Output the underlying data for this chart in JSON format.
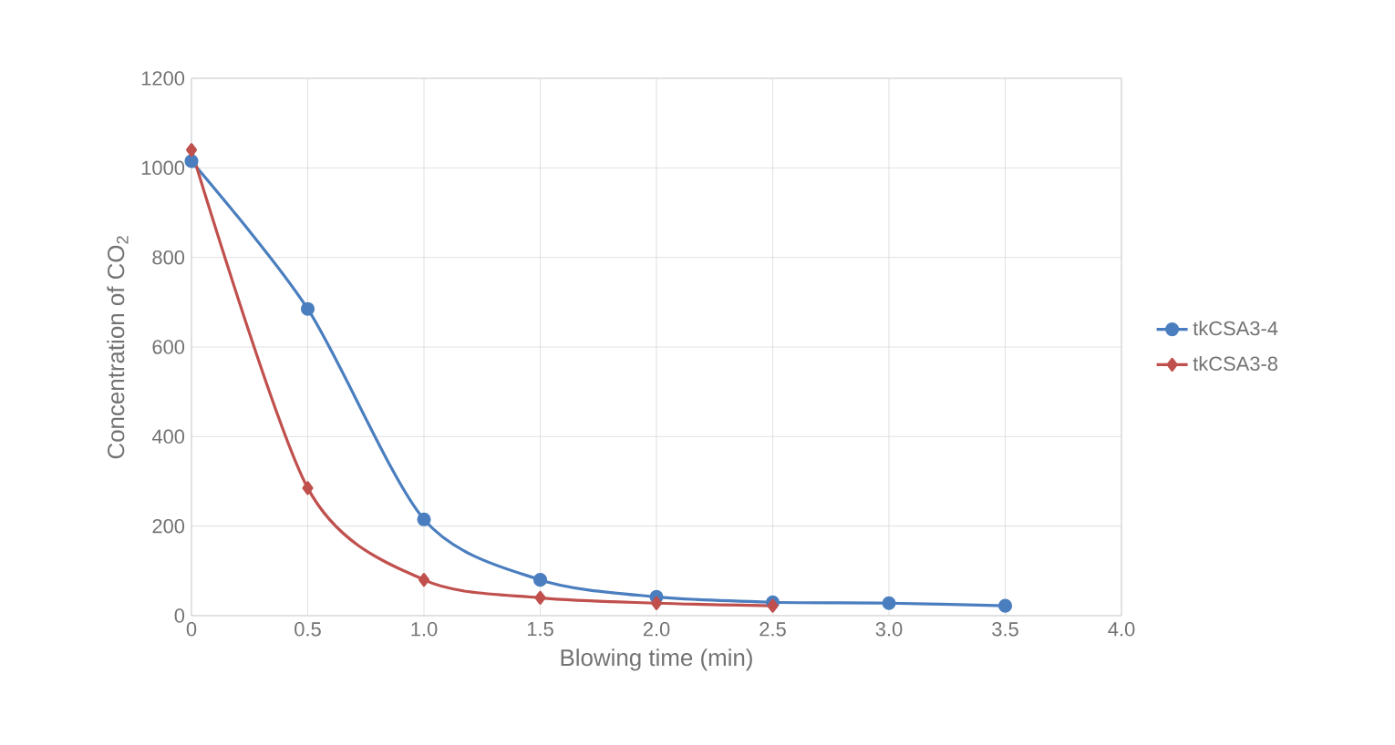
{
  "chart_data": {
    "type": "line",
    "xlabel": "Blowing time (min)",
    "ylabel": "Concentration of CO$_{2}$",
    "xlim": [
      0,
      4
    ],
    "ylim": [
      0,
      1200
    ],
    "xticks": [
      0,
      {
        "value": 0.5,
        "label": "0.5"
      },
      {
        "value": 1,
        "label": "1.0"
      },
      {
        "value": 1.5,
        "label": "1.5"
      },
      {
        "value": 2,
        "label": "2.0"
      },
      {
        "value": 2.5,
        "label": "2.5"
      },
      {
        "value": 3,
        "label": "3.0"
      },
      {
        "value": 3.5,
        "label": "3.5"
      },
      {
        "value": 4,
        "label": "4.0"
      }
    ],
    "yticks": [
      0,
      200,
      400,
      600,
      800,
      1000,
      1200
    ],
    "grid": true,
    "legend": "right",
    "series": [
      {
        "name": "tkCSA3-4",
        "color": "#4a7ebf",
        "marker": "circle",
        "x": [
          0,
          0.5,
          1,
          1.5,
          2,
          2.5,
          3,
          3.5
        ],
        "values": [
          1015,
          685,
          215,
          80,
          42,
          30,
          28,
          22
        ]
      },
      {
        "name": "tkCSA3-8",
        "color": "#c0504d",
        "marker": "diamond",
        "x": [
          0,
          0.5,
          1,
          1.5,
          2,
          2.5
        ],
        "values": [
          1040,
          285,
          80,
          40,
          28,
          22
        ]
      }
    ]
  }
}
